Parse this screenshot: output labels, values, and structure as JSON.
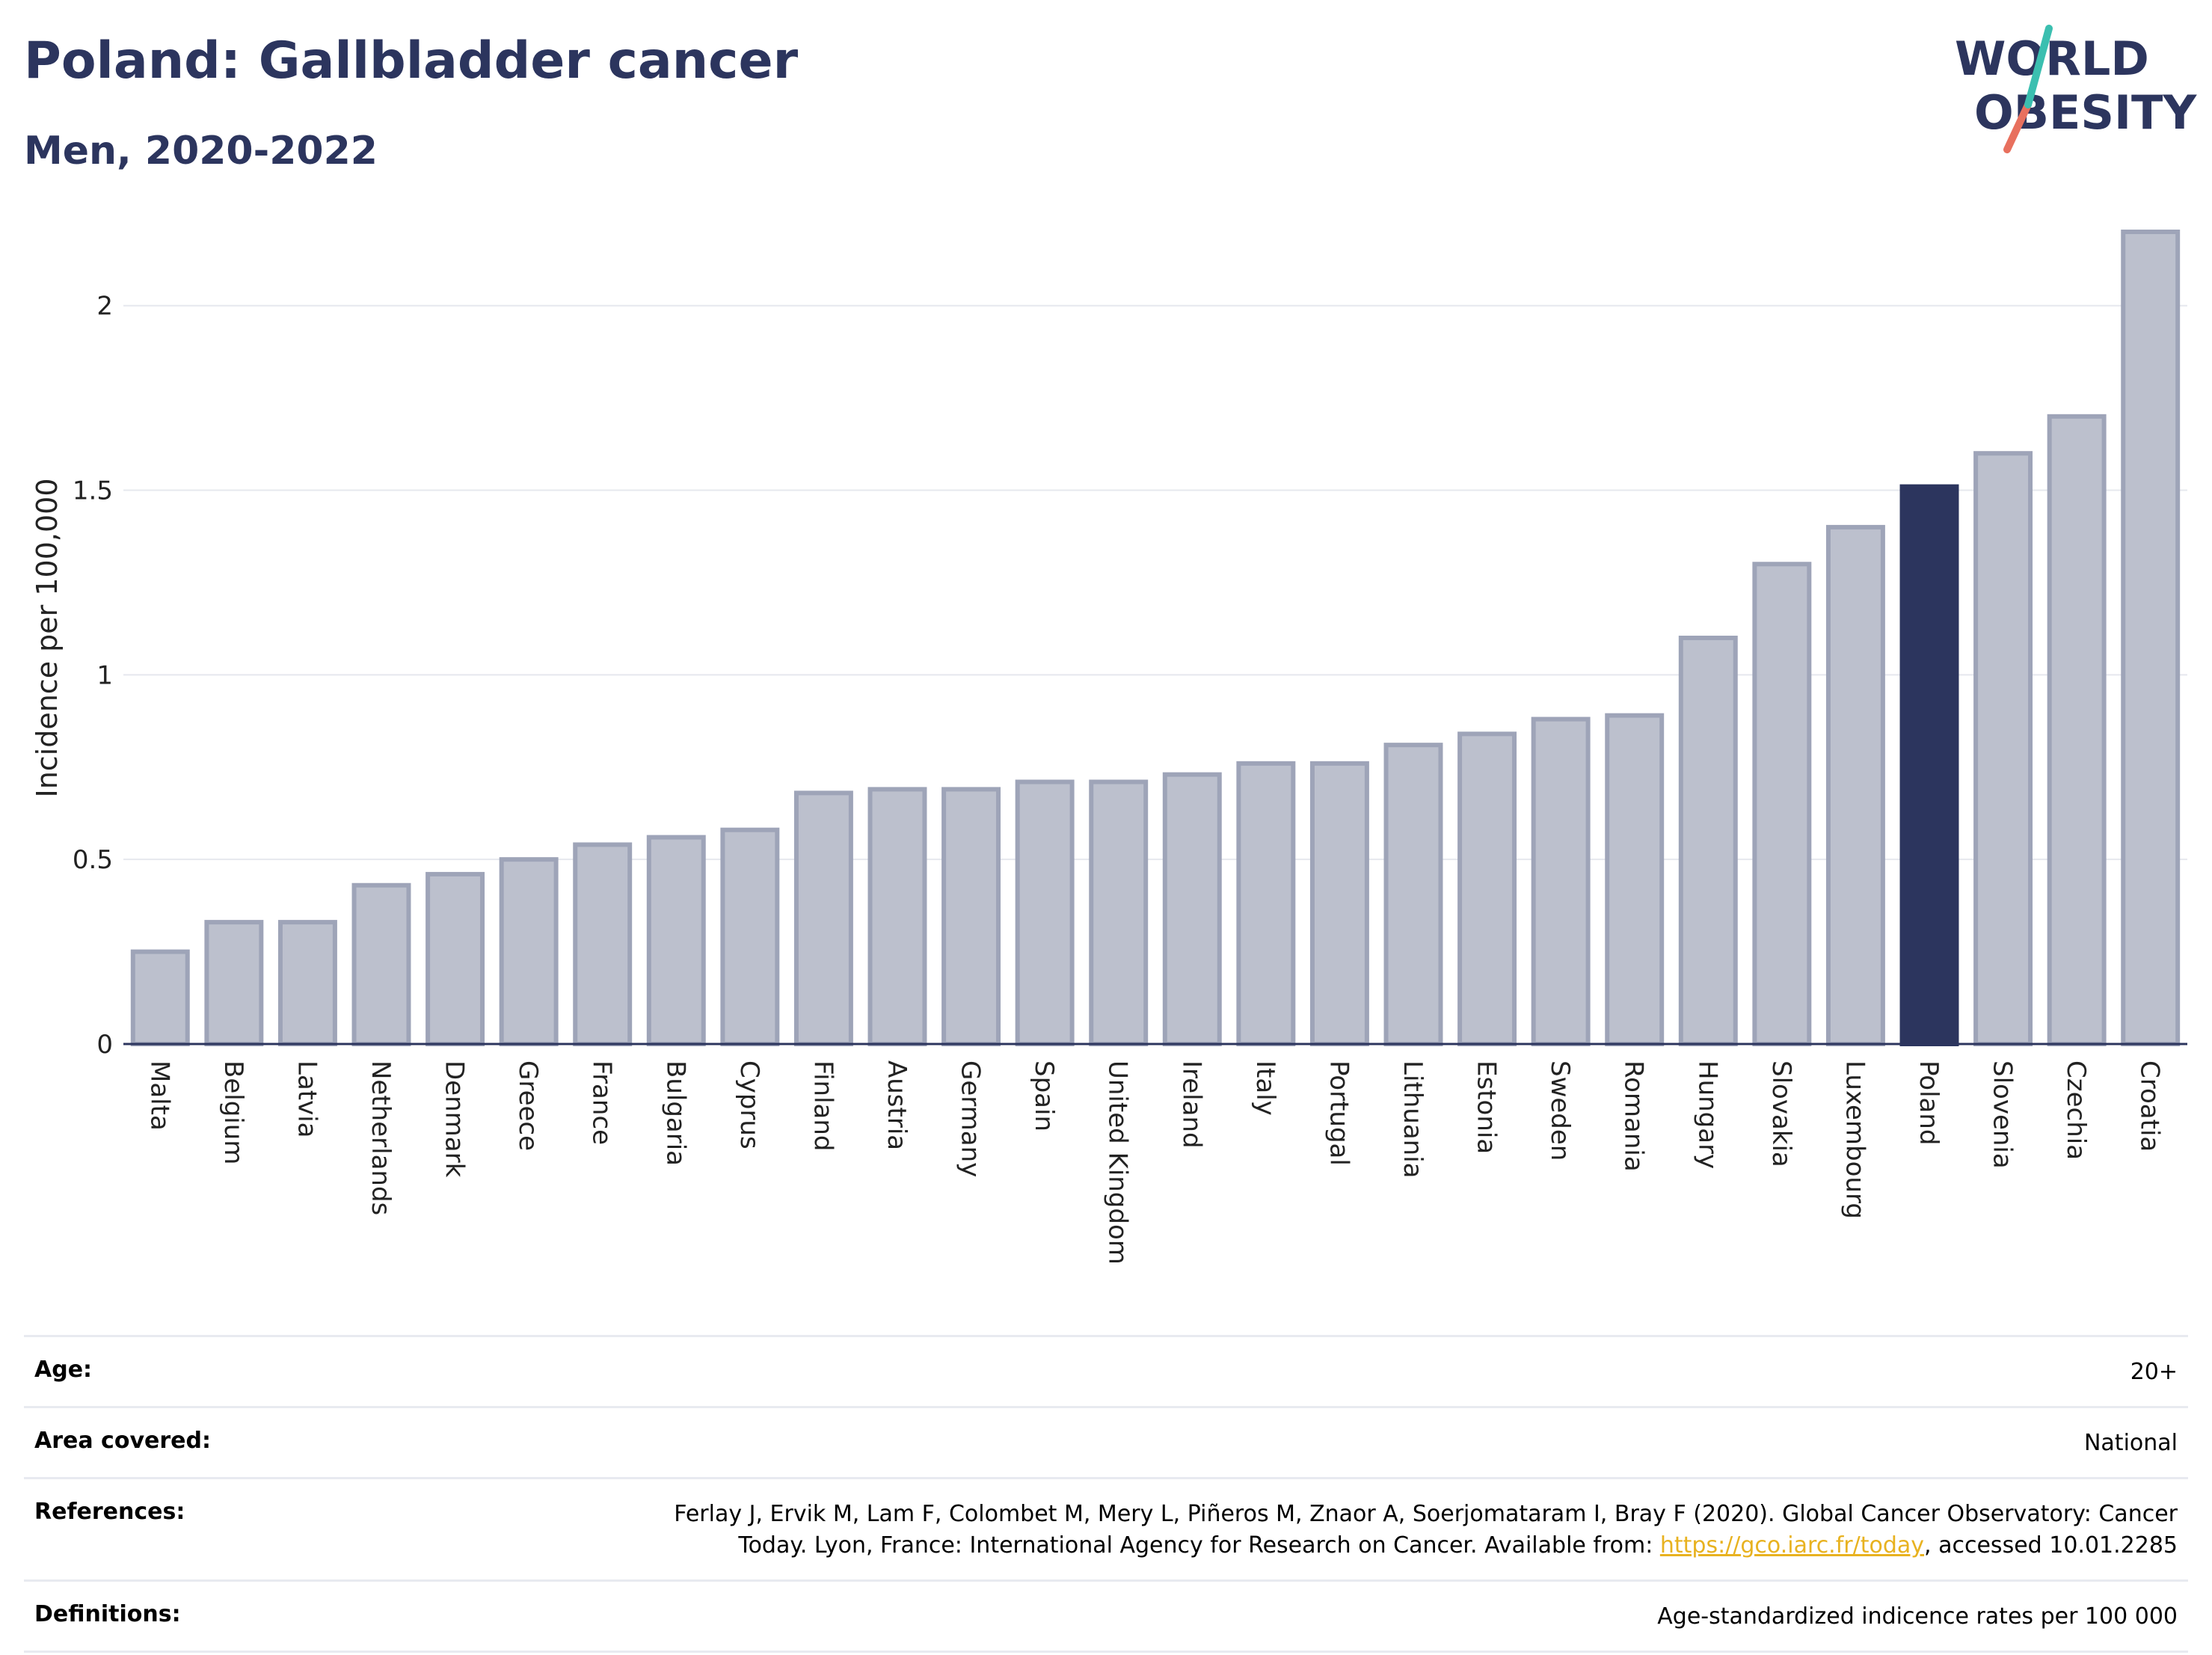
{
  "header": {
    "title": "Poland: Gallbladder cancer",
    "subtitle": "Men, 2020-2022",
    "logo_line1": "WORLD",
    "logo_line2": "OBESITY"
  },
  "colors": {
    "highlight": "#2c355e",
    "bar": "#bcc0cd",
    "bar_border": "#9ea4b8",
    "logo_teal": "#3bbfb0",
    "logo_coral": "#e8705e",
    "link": "#e8b220"
  },
  "chart_data": {
    "type": "bar",
    "ylabel": "Incidence per 100,000",
    "ylim": [
      0,
      2.2
    ],
    "yticks": [
      0,
      0.5,
      1,
      1.5,
      2
    ],
    "ytick_labels": [
      "0",
      "0.5",
      "1",
      "1.5",
      "2"
    ],
    "grid": true,
    "highlight": "Poland",
    "categories": [
      "Malta",
      "Belgium",
      "Latvia",
      "Netherlands",
      "Denmark",
      "Greece",
      "France",
      "Bulgaria",
      "Cyprus",
      "Finland",
      "Austria",
      "Germany",
      "Spain",
      "United Kingdom",
      "Ireland",
      "Italy",
      "Portugal",
      "Lithuania",
      "Estonia",
      "Sweden",
      "Romania",
      "Hungary",
      "Slovakia",
      "Luxembourg",
      "Poland",
      "Slovenia",
      "Czechia",
      "Croatia"
    ],
    "values": [
      0.25,
      0.33,
      0.33,
      0.43,
      0.46,
      0.5,
      0.54,
      0.56,
      0.58,
      0.68,
      0.69,
      0.69,
      0.71,
      0.71,
      0.73,
      0.76,
      0.76,
      0.81,
      0.84,
      0.88,
      0.89,
      1.1,
      1.3,
      1.4,
      1.51,
      1.6,
      1.7,
      2.2
    ]
  },
  "info": {
    "age_label": "Age:",
    "age_value": "20+",
    "area_label": "Area covered:",
    "area_value": "National",
    "references_label": "References:",
    "references_text": "Ferlay J, Ervik M, Lam F, Colombet M, Mery L, Piñeros M, Znaor A, Soerjomataram I, Bray F (2020). Global Cancer Observatory: Cancer Today. Lyon, France: International Agency for Research on Cancer. Available from: ",
    "references_link": "https://gco.iarc.fr/today",
    "references_suffix": ", accessed 10.01.2285",
    "definitions_label": "Definitions:",
    "definitions_value": "Age-standardized indicence rates per 100 000"
  }
}
